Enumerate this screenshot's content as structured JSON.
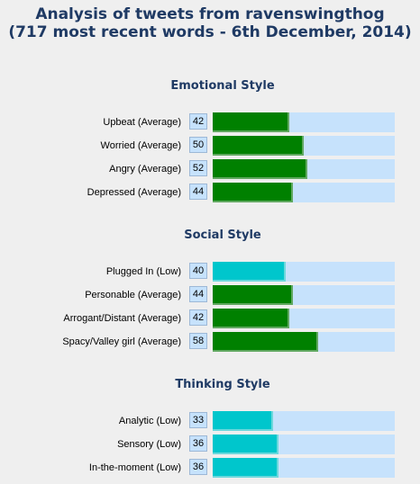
{
  "title_line1": "Analysis of tweets from ravenswingthog",
  "title_line2": "(717 most recent words - 6th December, 2014)",
  "scale_max": 100,
  "colors": {
    "background": "#efefef",
    "title": "#1f3a64",
    "track": "#c6e2fc",
    "average_fill": "#008000",
    "low_fill": "#00c6cc"
  },
  "sections": [
    {
      "heading": "Emotional Style",
      "rows": [
        {
          "label": "Upbeat (Average)",
          "score": "42",
          "value": 42,
          "level": "average"
        },
        {
          "label": "Worried (Average)",
          "score": "50",
          "value": 50,
          "level": "average"
        },
        {
          "label": "Angry (Average)",
          "score": "52",
          "value": 52,
          "level": "average"
        },
        {
          "label": "Depressed (Average)",
          "score": "44",
          "value": 44,
          "level": "average"
        }
      ]
    },
    {
      "heading": "Social Style",
      "rows": [
        {
          "label": "Plugged In (Low)",
          "score": "40",
          "value": 40,
          "level": "low"
        },
        {
          "label": "Personable (Average)",
          "score": "44",
          "value": 44,
          "level": "average"
        },
        {
          "label": "Arrogant/Distant (Average)",
          "score": "42",
          "value": 42,
          "level": "average"
        },
        {
          "label": "Spacy/Valley girl (Average)",
          "score": "58",
          "value": 58,
          "level": "average"
        }
      ]
    },
    {
      "heading": "Thinking Style",
      "rows": [
        {
          "label": "Analytic (Low)",
          "score": "33",
          "value": 33,
          "level": "low"
        },
        {
          "label": "Sensory (Low)",
          "score": "36",
          "value": 36,
          "level": "low"
        },
        {
          "label": "In-the-moment (Low)",
          "score": "36",
          "value": 36,
          "level": "low"
        }
      ]
    }
  ]
}
